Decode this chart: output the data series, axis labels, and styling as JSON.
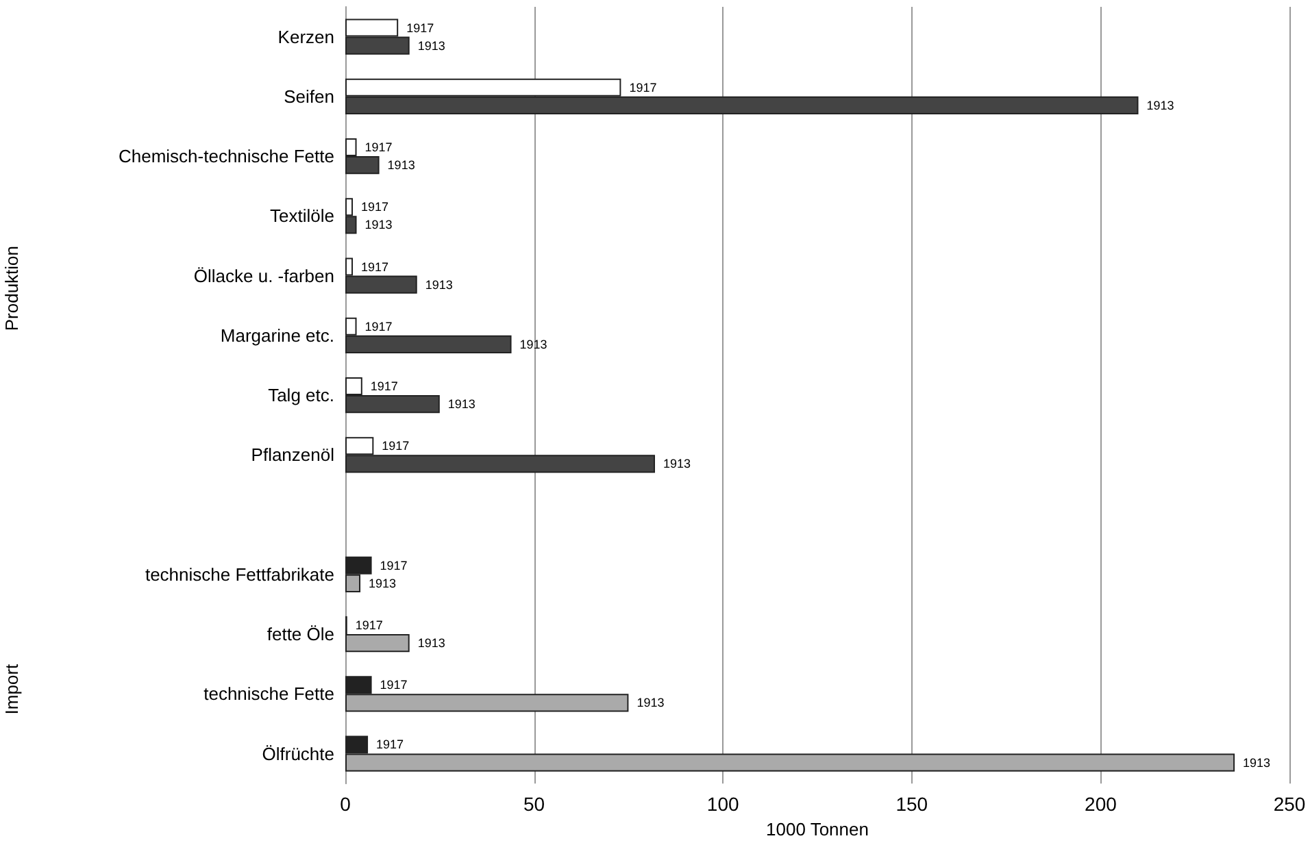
{
  "chart_data": {
    "type": "bar",
    "orientation": "horizontal",
    "xlabel": "1000 Tonnen",
    "categories": [
      "Kerzen",
      "Seifen",
      "Chemisch-technische Fette",
      "Textilöle",
      "Öllacke u. -farben",
      "Margarine etc.",
      "Talg etc.",
      "Pflanzenöl",
      null,
      "technische Fettfabrikate",
      "fette Öle",
      "technische Fette",
      "Ölfrüchte"
    ],
    "series": [
      {
        "name": "1917",
        "colors": [
          "#ffffff",
          "#ffffff",
          "#ffffff",
          "#ffffff",
          "#ffffff",
          "#ffffff",
          "#ffffff",
          "#ffffff",
          null,
          "#222222",
          "#222222",
          "#222222",
          "#222222"
        ],
        "values": [
          14,
          73,
          3,
          2,
          2,
          3,
          4.5,
          7.5,
          null,
          7,
          0.5,
          7,
          6
        ]
      },
      {
        "name": "1913",
        "colors": [
          "#444444",
          "#444444",
          "#444444",
          "#444444",
          "#444444",
          "#444444",
          "#444444",
          "#444444",
          null,
          "#aaaaaa",
          "#aaaaaa",
          "#aaaaaa",
          "#aaaaaa"
        ],
        "values": [
          17,
          210,
          9,
          3,
          19,
          44,
          25,
          82,
          null,
          4,
          17,
          75,
          235.5
        ]
      }
    ],
    "xlim": [
      0,
      250
    ],
    "xticks": [
      0,
      50,
      100,
      150,
      200,
      250
    ],
    "grid": "x",
    "annotations": [
      "Produktion",
      "Import"
    ]
  }
}
